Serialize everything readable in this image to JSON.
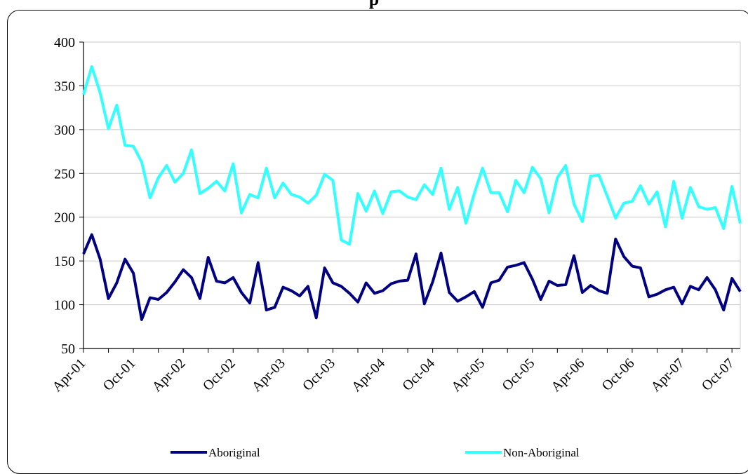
{
  "chart_data": {
    "type": "line",
    "title": "",
    "title_visible_fragment": "p",
    "xlabel": "",
    "ylabel": "",
    "ylim": [
      50,
      400
    ],
    "yticks": [
      50,
      100,
      150,
      200,
      250,
      300,
      350,
      400
    ],
    "grid": "horizontal",
    "legend_position": "bottom",
    "x_start": "Apr-01",
    "x_tick_labels": [
      "Apr-01",
      "Oct-01",
      "Apr-02",
      "Oct-02",
      "Apr-03",
      "Oct-03",
      "Apr-04",
      "Oct-04",
      "Apr-05",
      "Oct-05",
      "Apr-06",
      "Oct-06",
      "Apr-07",
      "Oct-07"
    ],
    "series": [
      {
        "name": "Aboriginal",
        "color": "#000080",
        "values": [
          158,
          180,
          152,
          107,
          125,
          152,
          136,
          83,
          108,
          106,
          114,
          126,
          140,
          131,
          107,
          154,
          127,
          125,
          131,
          114,
          102,
          148,
          94,
          97,
          120,
          116,
          110,
          121,
          85,
          142,
          125,
          121,
          113,
          103,
          125,
          113,
          116,
          124,
          127,
          128,
          158,
          101,
          126,
          159,
          114,
          104,
          109,
          115,
          97,
          125,
          128,
          143,
          145,
          148,
          129,
          106,
          127,
          122,
          123,
          156,
          114,
          122,
          116,
          113,
          175,
          155,
          144,
          142,
          109,
          112,
          117,
          120,
          101,
          121,
          117,
          131,
          117,
          94,
          130,
          115
        ]
      },
      {
        "name": "Non-Aboriginal",
        "color": "#33ffff",
        "values": [
          340,
          372,
          342,
          301,
          328,
          282,
          281,
          263,
          222,
          245,
          259,
          240,
          250,
          277,
          227,
          233,
          241,
          230,
          261,
          205,
          226,
          222,
          256,
          222,
          239,
          226,
          223,
          216,
          225,
          249,
          242,
          174,
          169,
          227,
          207,
          230,
          204,
          229,
          230,
          223,
          220,
          237,
          226,
          256,
          209,
          234,
          193,
          227,
          256,
          228,
          228,
          206,
          242,
          228,
          257,
          244,
          205,
          245,
          259,
          215,
          195,
          247,
          248,
          224,
          199,
          216,
          218,
          236,
          215,
          229,
          189,
          241,
          199,
          234,
          212,
          209,
          211,
          187,
          235,
          193
        ]
      }
    ]
  }
}
